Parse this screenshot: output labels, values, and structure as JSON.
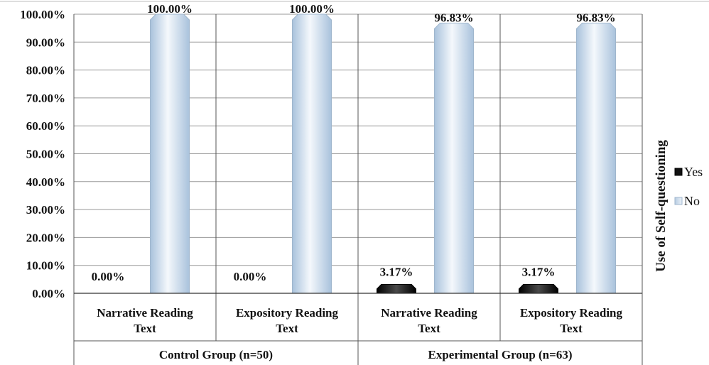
{
  "chart_data": {
    "type": "bar",
    "groups": [
      {
        "label": "Control Group (n=50)",
        "categories": [
          "Narrative Reading Text",
          "Expository Reading Text"
        ]
      },
      {
        "label": "Experimental Group (n=63)",
        "categories": [
          "Narrative Reading Text",
          "Expository Reading Text"
        ]
      }
    ],
    "categories": [
      [
        "Narrative Reading",
        "Text"
      ],
      [
        "Expository Reading",
        "Text"
      ],
      [
        "Narrative Reading",
        "Text"
      ],
      [
        "Expository Reading",
        "Text"
      ]
    ],
    "series": [
      {
        "name": "Yes",
        "values": [
          0.0,
          0.0,
          3.17,
          3.17
        ],
        "labels": [
          "0.00%",
          "0.00%",
          "3.17%",
          "3.17%"
        ],
        "color": "#1a1a1a"
      },
      {
        "name": "No",
        "values": [
          100.0,
          100.0,
          96.83,
          96.83
        ],
        "labels": [
          "100.00%",
          "100.00%",
          "96.83%",
          "96.83%"
        ],
        "color": "#dce8f4"
      }
    ],
    "ylim": [
      0,
      100
    ],
    "yticks": [
      "0.00%",
      "10.00%",
      "20.00%",
      "30.00%",
      "40.00%",
      "50.00%",
      "60.00%",
      "70.00%",
      "80.00%",
      "90.00%",
      "100.00%"
    ],
    "legend_title": "Use of Self-questioning",
    "legend_position": "right",
    "grid": true
  }
}
